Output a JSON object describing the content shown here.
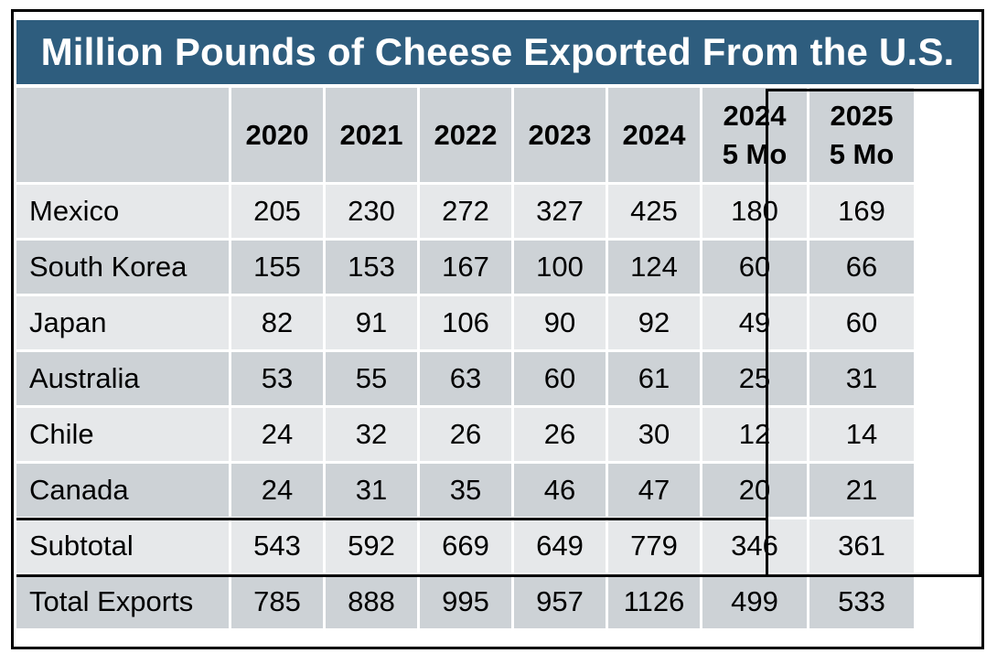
{
  "title": "Million Pounds of Cheese Exported From the U.S.",
  "columns": [
    "2020",
    "2021",
    "2022",
    "2023",
    "2024",
    "2024\n5 Mo",
    "2025\n5 Mo"
  ],
  "col_lines": [
    [
      "2020"
    ],
    [
      "2021"
    ],
    [
      "2022"
    ],
    [
      "2023"
    ],
    [
      "2024"
    ],
    [
      "2024",
      "5 Mo"
    ],
    [
      "2025",
      "5 Mo"
    ]
  ],
  "rows": [
    {
      "label": "Mexico",
      "values": [
        "205",
        "230",
        "272",
        "327",
        "425",
        "180",
        "169"
      ]
    },
    {
      "label": "South Korea",
      "values": [
        "155",
        "153",
        "167",
        "100",
        "124",
        "60",
        "66"
      ]
    },
    {
      "label": "Japan",
      "values": [
        "82",
        "91",
        "106",
        "90",
        "92",
        "49",
        "60"
      ]
    },
    {
      "label": "Australia",
      "values": [
        "53",
        "55",
        "63",
        "60",
        "61",
        "25",
        "31"
      ]
    },
    {
      "label": "Chile",
      "values": [
        "24",
        "32",
        "26",
        "26",
        "30",
        "12",
        "14"
      ]
    },
    {
      "label": "Canada",
      "values": [
        "24",
        "31",
        "35",
        "46",
        "47",
        "20",
        "21"
      ]
    },
    {
      "label": "Subtotal",
      "values": [
        "543",
        "592",
        "669",
        "649",
        "779",
        "346",
        "361"
      ]
    },
    {
      "label": "Total Exports",
      "values": [
        "785",
        "888",
        "995",
        "957",
        "1126",
        "499",
        "533"
      ]
    }
  ],
  "colors": {
    "title_bg": "#2e5d7e",
    "row_light": "#e6e8ea",
    "row_dark": "#cdd2d6"
  }
}
